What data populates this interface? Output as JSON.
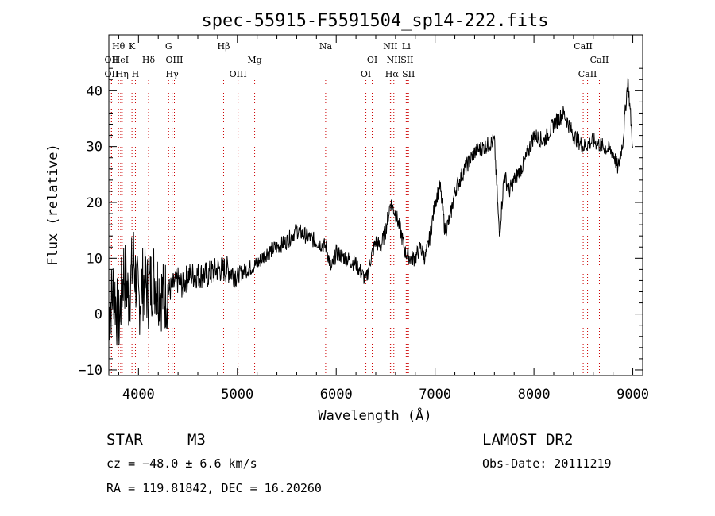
{
  "chart_data": {
    "type": "line",
    "title": "spec-55915-F5591504_sp14-222.fits",
    "xlabel": "Wavelength (Å)",
    "ylabel": "Flux (relative)",
    "xlim": [
      3700,
      9100
    ],
    "ylim": [
      -11,
      50
    ],
    "xticks": [
      4000,
      5000,
      6000,
      7000,
      8000,
      9000
    ],
    "yticks": [
      -10,
      0,
      10,
      20,
      30,
      40
    ],
    "series": [
      {
        "name": "flux",
        "color": "#000000",
        "x": [
          3700,
          3750,
          3800,
          3850,
          3900,
          3950,
          4000,
          4050,
          4100,
          4150,
          4200,
          4250,
          4300,
          4350,
          4400,
          4450,
          4500,
          4600,
          4700,
          4800,
          4900,
          5000,
          5100,
          5200,
          5300,
          5400,
          5500,
          5600,
          5700,
          5800,
          5900,
          5950,
          6000,
          6100,
          6200,
          6300,
          6350,
          6400,
          6450,
          6500,
          6550,
          6600,
          6650,
          6700,
          6750,
          6800,
          6850,
          6900,
          6950,
          7000,
          7050,
          7100,
          7150,
          7200,
          7300,
          7400,
          7500,
          7600,
          7650,
          7700,
          7750,
          7800,
          7900,
          8000,
          8100,
          8200,
          8300,
          8400,
          8500,
          8600,
          8700,
          8800,
          8850,
          8900,
          8950,
          9000
        ],
        "y": [
          0,
          5,
          -2,
          8,
          3,
          10,
          2,
          6,
          4,
          7,
          5,
          3,
          4,
          5,
          6,
          5,
          7,
          7,
          7,
          8,
          8,
          7,
          8,
          9,
          11,
          12,
          13,
          15,
          14,
          13,
          12,
          8,
          11,
          10,
          9,
          6,
          10,
          13,
          12,
          15,
          20,
          18,
          15,
          11,
          10,
          10,
          12,
          10,
          14,
          20,
          23,
          15,
          17,
          22,
          26,
          29,
          30,
          31,
          14,
          25,
          22,
          24,
          27,
          32,
          31,
          34,
          36,
          32,
          30,
          31,
          30,
          29,
          26,
          31,
          42,
          30
        ]
      }
    ],
    "lines": [
      {
        "label": "Hθ",
        "x": 3798,
        "row": 1
      },
      {
        "label": "OII",
        "x": 3727,
        "row": 2
      },
      {
        "label": "OII",
        "x": 3727,
        "row": 3
      },
      {
        "label": "HeI",
        "x": 3820,
        "row": 2
      },
      {
        "label": "Hη",
        "x": 3835,
        "row": 3
      },
      {
        "label": "K",
        "x": 3934,
        "row": 1
      },
      {
        "label": "H",
        "x": 3969,
        "row": 3
      },
      {
        "label": "Hδ",
        "x": 4102,
        "row": 2
      },
      {
        "label": "G",
        "x": 4305,
        "row": 1
      },
      {
        "label": "OIII",
        "x": 4363,
        "row": 2
      },
      {
        "label": "Hγ",
        "x": 4340,
        "row": 3
      },
      {
        "label": "Hβ",
        "x": 4861,
        "row": 1
      },
      {
        "label": "OIII",
        "x": 5007,
        "row": 3
      },
      {
        "label": "Mg",
        "x": 5175,
        "row": 2
      },
      {
        "label": "Na",
        "x": 5893,
        "row": 1
      },
      {
        "label": "OI",
        "x": 6364,
        "row": 2
      },
      {
        "label": "OI",
        "x": 6300,
        "row": 3
      },
      {
        "label": "NII",
        "x": 6548,
        "row": 1
      },
      {
        "label": "NII",
        "x": 6583,
        "row": 2
      },
      {
        "label": "Hα",
        "x": 6563,
        "row": 3
      },
      {
        "label": "Li",
        "x": 6708,
        "row": 1
      },
      {
        "label": "SII",
        "x": 6716,
        "row": 2
      },
      {
        "label": "SII",
        "x": 6731,
        "row": 3
      },
      {
        "label": "CaII",
        "x": 8498,
        "row": 1
      },
      {
        "label": "CaII",
        "x": 8542,
        "row": 3
      },
      {
        "label": "CaII",
        "x": 8662,
        "row": 2
      }
    ]
  },
  "info": {
    "class_label": "STAR",
    "subclass": "M3",
    "cz": "cz = −48.0 ± 6.6 km/s",
    "coords": "RA = 119.81842, DEC =  16.20260",
    "survey": "LAMOST DR2",
    "obs_date": "Obs-Date: 20111219"
  }
}
